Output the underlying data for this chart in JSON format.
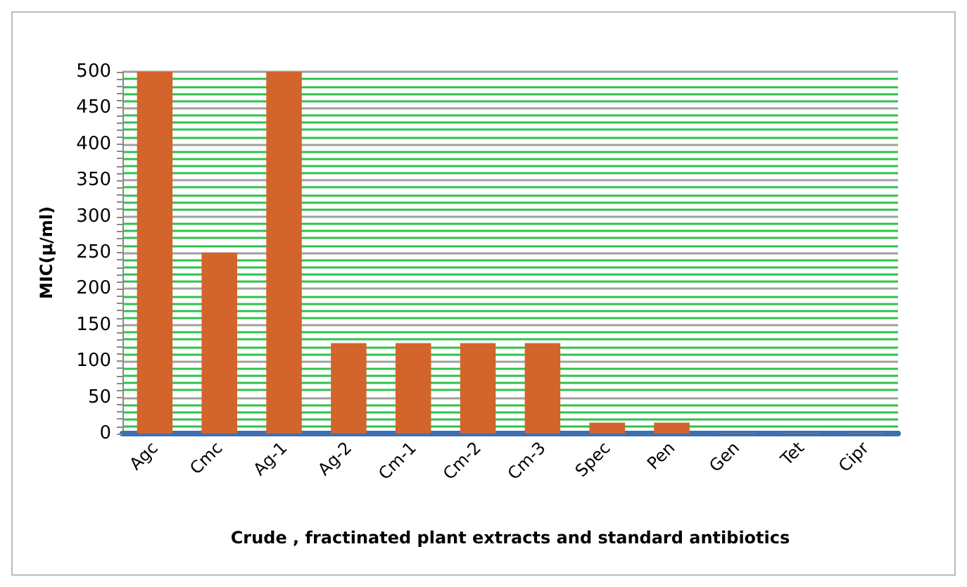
{
  "chart_data": {
    "type": "bar",
    "xlabel": "Crude , fractinated plant extracts and standard antibiotics",
    "ylabel": "MIC(µ/ml)",
    "categories": [
      "Agc",
      "Cmc",
      "Ag-1",
      "Ag-2",
      "Cm-1",
      "Cm-2",
      "Cm-3",
      "Spec",
      "Pen",
      "Gen",
      "Tet",
      "Cipr"
    ],
    "values": [
      500,
      250,
      500,
      125,
      125,
      125,
      125,
      15,
      15,
      1,
      1,
      1
    ],
    "color": "#d2642c",
    "ylim": [
      0,
      500
    ],
    "yticks": [
      0,
      {
        "value": 10,
        "label": null
      },
      {
        "value": 20,
        "label": null
      },
      {
        "value": 30,
        "label": null
      },
      {
        "value": 40,
        "label": null
      },
      50,
      {
        "value": 60,
        "label": null
      },
      {
        "value": 70,
        "label": null
      },
      {
        "value": 80,
        "label": null
      },
      {
        "value": 90,
        "label": null
      },
      100,
      {
        "value": 110,
        "label": null
      },
      {
        "value": 120,
        "label": null
      },
      {
        "value": 130,
        "label": null
      },
      {
        "value": 140,
        "label": null
      },
      150,
      {
        "value": 160,
        "label": null
      },
      {
        "value": 170,
        "label": null
      },
      {
        "value": 180,
        "label": null
      },
      {
        "value": 190,
        "label": null
      },
      200,
      {
        "value": 210,
        "label": null
      },
      {
        "value": 220,
        "label": null
      },
      {
        "value": 230,
        "label": null
      },
      {
        "value": 240,
        "label": null
      },
      250,
      {
        "value": 260,
        "label": null
      },
      {
        "value": 270,
        "label": null
      },
      {
        "value": 280,
        "label": null
      },
      {
        "value": 290,
        "label": null
      },
      300,
      {
        "value": 310,
        "label": null
      },
      {
        "value": 320,
        "label": null
      },
      {
        "value": 330,
        "label": null
      },
      {
        "value": 340,
        "label": null
      },
      350,
      {
        "value": 360,
        "label": null
      },
      {
        "value": 370,
        "label": null
      },
      {
        "value": 380,
        "label": null
      },
      {
        "value": 390,
        "label": null
      },
      400,
      {
        "value": 410,
        "label": null
      },
      {
        "value": 420,
        "label": null
      },
      {
        "value": 430,
        "label": null
      },
      {
        "value": 440,
        "label": null
      },
      450,
      {
        "value": 460,
        "label": null
      },
      {
        "value": 470,
        "label": null
      },
      {
        "value": 480,
        "label": null
      },
      {
        "value": 490,
        "label": null
      },
      500
    ],
    "grid": "y"
  }
}
